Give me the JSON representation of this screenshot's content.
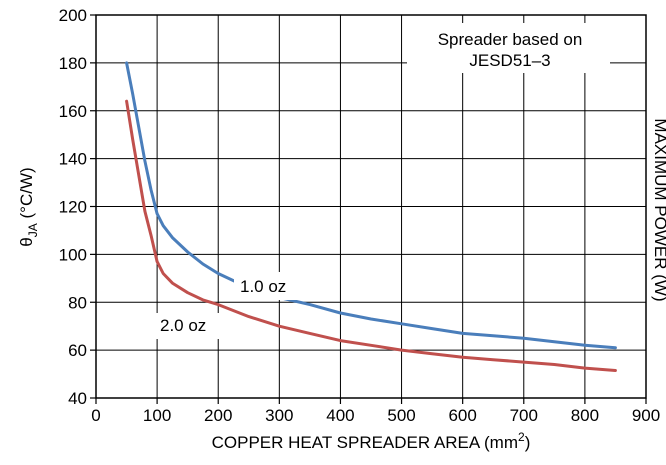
{
  "chart_data": {
    "type": "line",
    "title": "",
    "xlabel_main": "COPPER HEAT SPREADER AREA (mm",
    "xlabel_sup": "2",
    "xlabel_tail": ")",
    "ylabel_theta": "θ",
    "ylabel_sub": "JA",
    "ylabel_tail": " (°C/W)",
    "right_label": "MAXIMUM POWER (W)",
    "xlim": [
      0,
      900
    ],
    "ylim": [
      40,
      200
    ],
    "xticks": [
      0,
      100,
      200,
      300,
      400,
      500,
      600,
      700,
      800,
      900
    ],
    "yticks": [
      40,
      60,
      80,
      100,
      120,
      140,
      160,
      180,
      200
    ],
    "grid": true,
    "series": [
      {
        "name": "1.0 oz",
        "color": "#4a7ebb",
        "x": [
          50,
          60,
          70,
          80,
          90,
          100,
          110,
          125,
          150,
          175,
          200,
          250,
          300,
          350,
          400,
          450,
          500,
          550,
          600,
          650,
          700,
          750,
          800,
          850
        ],
        "y": [
          180,
          167,
          153,
          139,
          127,
          117,
          112,
          107,
          101,
          96,
          92,
          86,
          82,
          79,
          75.5,
          73,
          71,
          69,
          67,
          66,
          65,
          63.5,
          62,
          61
        ]
      },
      {
        "name": "2.0 oz",
        "color": "#c0504d",
        "x": [
          50,
          60,
          70,
          80,
          90,
          100,
          110,
          125,
          150,
          175,
          200,
          250,
          300,
          350,
          400,
          450,
          500,
          550,
          600,
          650,
          700,
          750,
          800,
          850
        ],
        "y": [
          164,
          148,
          133,
          118,
          108,
          97,
          92,
          88,
          84,
          81,
          79,
          74,
          70,
          67,
          64,
          62,
          60,
          58.5,
          57,
          56,
          55,
          54,
          52.5,
          51.5
        ]
      }
    ],
    "annotations": {
      "box_line1": "Spreader based on",
      "box_line2": "JESD51–3",
      "label_1oz": "1.0 oz",
      "label_2oz": "2.0 oz"
    }
  }
}
